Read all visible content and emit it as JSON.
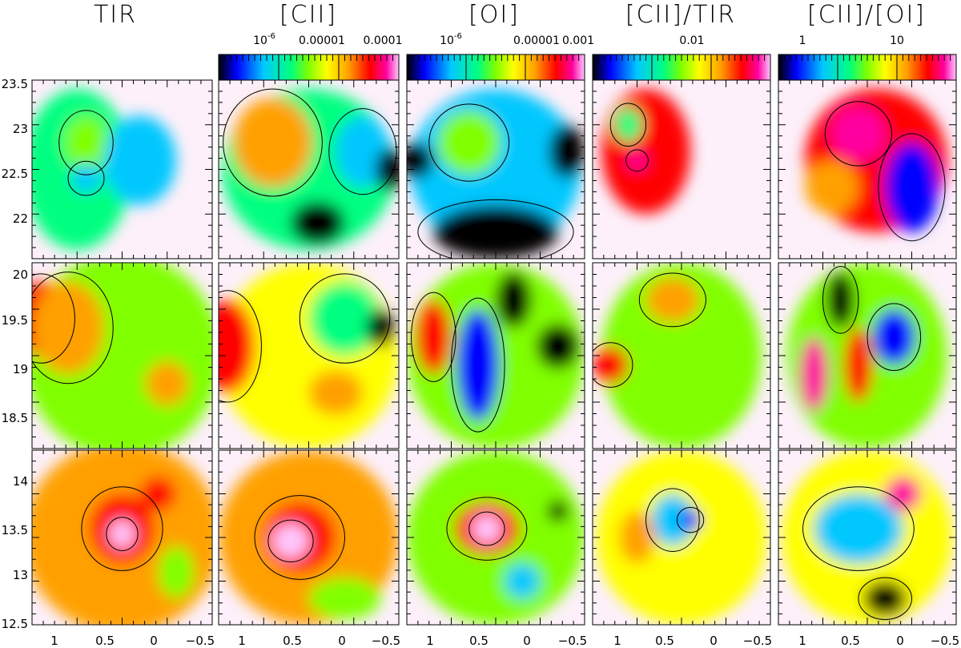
{
  "columns": [
    {
      "title": "TIR",
      "colorbar": null
    },
    {
      "title": "[CII]",
      "colorbar": {
        "labels": [
          "10^-6",
          "0.00001",
          "0.0001"
        ]
      }
    },
    {
      "title": "[OI]",
      "colorbar": {
        "labels": [
          "10^-6",
          "0.00001",
          "0.001"
        ]
      }
    },
    {
      "title": "[CII]/TIR",
      "colorbar": {
        "labels": [
          "0.01"
        ]
      }
    },
    {
      "title": "[CII]/[OI]",
      "colorbar": {
        "labels": [
          "1",
          "10"
        ]
      }
    }
  ],
  "rows": [
    {
      "y_ticks": [
        "23.5",
        "23",
        "22.5",
        "22"
      ]
    },
    {
      "y_ticks": [
        "20",
        "19.5",
        "19",
        "18.5"
      ]
    },
    {
      "y_ticks": [
        "14",
        "13.5",
        "13",
        "12.5"
      ]
    }
  ],
  "x_ticks": [
    "1",
    "0.5",
    "0",
    "−0.5"
  ],
  "colors": {
    "background_missing": "#fdf0fa",
    "contour": "#000000",
    "colormap": [
      "#000000",
      "#0000ff",
      "#00c8ff",
      "#00ff80",
      "#80ff00",
      "#ffff00",
      "#ffa000",
      "#ff0000",
      "#ff00a0",
      "#ffc8ff"
    ]
  }
}
